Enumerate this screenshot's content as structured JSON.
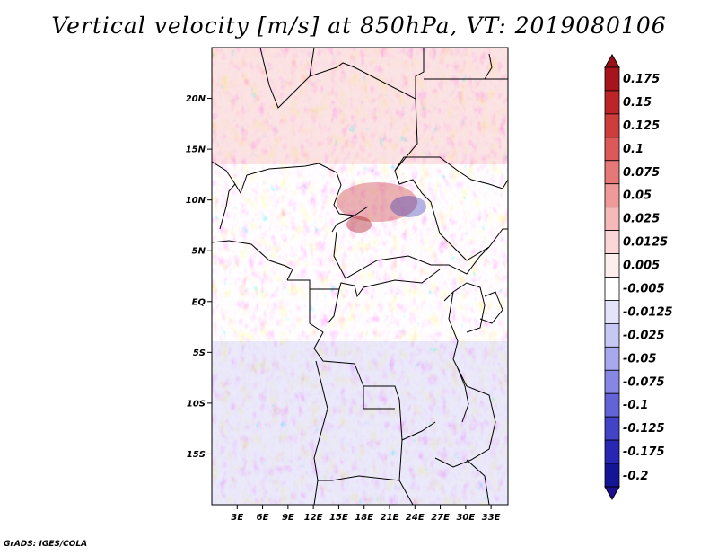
{
  "title": "Vertical velocity [m/s] at 850hPa, VT: 2019080106",
  "credit": "GrADS: IGES/COLA",
  "map": {
    "lon_range": [
      0,
      35
    ],
    "lat_range": [
      -20,
      25
    ],
    "lat_ticks": [
      {
        "value": 20,
        "label": "20N"
      },
      {
        "value": 15,
        "label": "15N"
      },
      {
        "value": 10,
        "label": "10N"
      },
      {
        "value": 5,
        "label": "5N"
      },
      {
        "value": 0,
        "label": "EQ"
      },
      {
        "value": -5,
        "label": "5S"
      },
      {
        "value": -10,
        "label": "10S"
      },
      {
        "value": -15,
        "label": "15S"
      }
    ],
    "lon_ticks": [
      {
        "value": 3,
        "label": "3E"
      },
      {
        "value": 6,
        "label": "6E"
      },
      {
        "value": 9,
        "label": "9E"
      },
      {
        "value": 12,
        "label": "12E"
      },
      {
        "value": 15,
        "label": "15E"
      },
      {
        "value": 18,
        "label": "18E"
      },
      {
        "value": 21,
        "label": "21E"
      },
      {
        "value": 24,
        "label": "24E"
      },
      {
        "value": 27,
        "label": "27E"
      },
      {
        "value": 30,
        "label": "30E"
      },
      {
        "value": 33,
        "label": "33E"
      }
    ]
  },
  "colorbar": {
    "levels": [
      {
        "label": "0.175",
        "color": "#a8141b"
      },
      {
        "label": "0.15",
        "color": "#bd2427"
      },
      {
        "label": "0.125",
        "color": "#cf3c3c"
      },
      {
        "label": "0.1",
        "color": "#dd5858"
      },
      {
        "label": "0.075",
        "color": "#e67878"
      },
      {
        "label": "0.05",
        "color": "#ef9999"
      },
      {
        "label": "0.025",
        "color": "#f6b9b9"
      },
      {
        "label": "0.0125",
        "color": "#fbd6d6"
      },
      {
        "label": "0.005",
        "color": "#fdeeee"
      },
      {
        "label": "-0.005",
        "color": "#ffffff"
      },
      {
        "label": "-0.0125",
        "color": "#e3e3fb"
      },
      {
        "label": "-0.025",
        "color": "#c7c7f5"
      },
      {
        "label": "-0.05",
        "color": "#a8a8ef"
      },
      {
        "label": "-0.075",
        "color": "#8686e4"
      },
      {
        "label": "-0.1",
        "color": "#6363d8"
      },
      {
        "label": "-0.125",
        "color": "#4343c8"
      },
      {
        "label": "-0.175",
        "color": "#2727b3"
      },
      {
        "label": "-0.2",
        "color": "#141496"
      }
    ],
    "top_arrow_color": "#9b1016",
    "bottom_arrow_color": "#1c1090"
  }
}
